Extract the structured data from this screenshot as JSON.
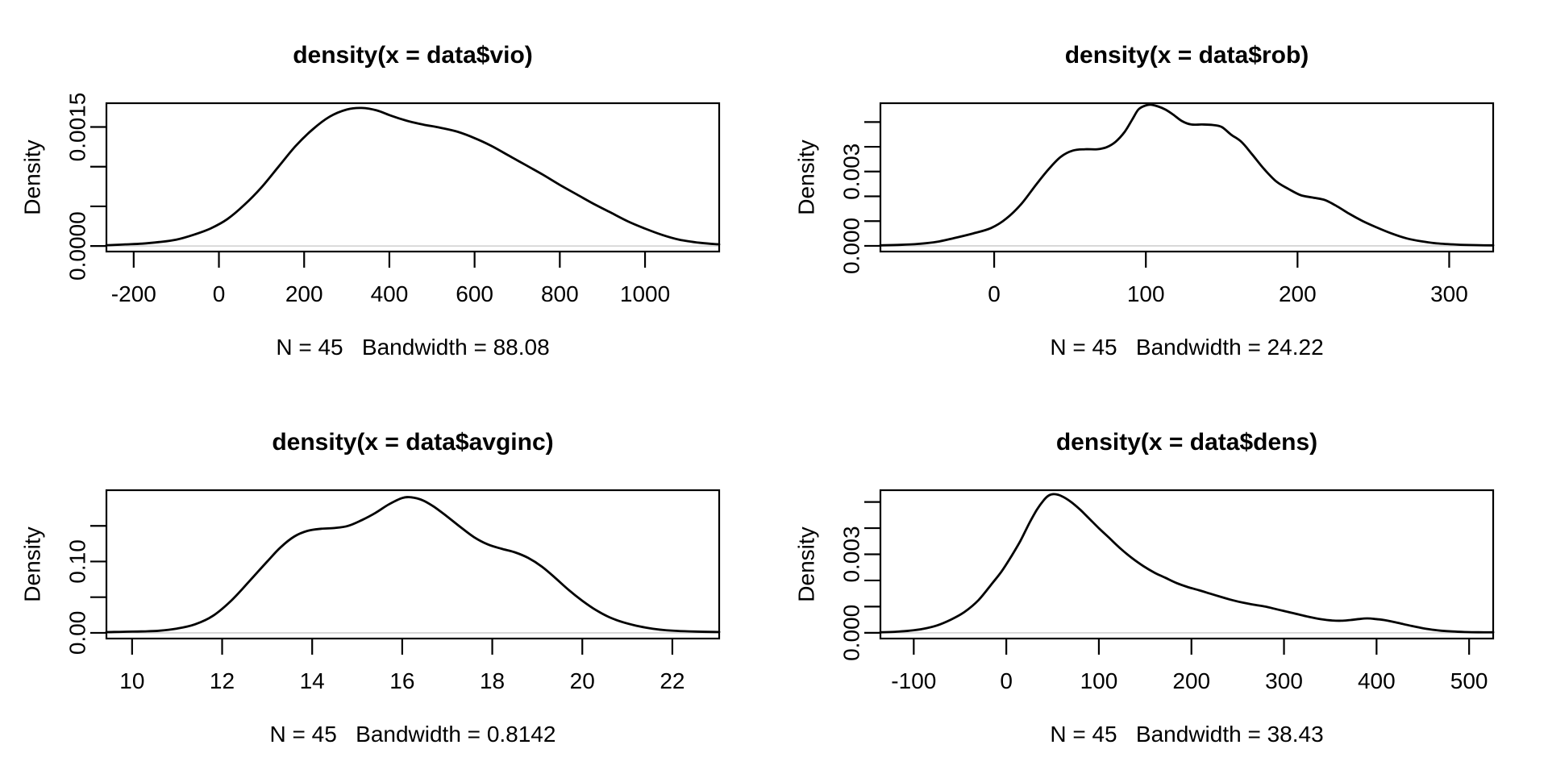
{
  "page": {
    "background": "#ffffff",
    "foreground": "#000000",
    "zero_line_color": "#d6d6d6"
  },
  "chart_data": [
    {
      "type": "line",
      "subtype": "kernel-density",
      "title": "density(x = data$vio)",
      "xlabel": "",
      "ylabel": "Density",
      "caption": "N = 45   Bandwidth = 88.08",
      "n": 45,
      "bandwidth": 88.08,
      "line_color": "#000000",
      "legend": "none",
      "grid": "off",
      "x_axis": {
        "ticks": [
          -200,
          0,
          200,
          400,
          600,
          800,
          1000
        ],
        "labels": [
          "-200",
          "0",
          "200",
          "400",
          "600",
          "800",
          "1000"
        ],
        "range": [
          -264,
          1174
        ]
      },
      "y_axis": {
        "ticks": [
          0,
          0.0005,
          0.001,
          0.0015
        ],
        "labels": [
          "0.0000",
          "",
          "",
          "0.0015"
        ],
        "range": [
          -7e-05,
          0.0018
        ]
      },
      "series": {
        "x": [
          -264,
          -220,
          -180,
          -140,
          -100,
          -60,
          -20,
          20,
          60,
          100,
          140,
          180,
          220,
          260,
          300,
          335,
          370,
          405,
          440,
          480,
          520,
          560,
          600,
          640,
          680,
          720,
          760,
          800,
          840,
          880,
          920,
          960,
          1000,
          1040,
          1080,
          1130,
          1174
        ],
        "y": [
          1e-05,
          2e-05,
          3e-05,
          5e-05,
          8e-05,
          0.00014,
          0.00022,
          0.00034,
          0.00052,
          0.00074,
          0.001,
          0.00126,
          0.00147,
          0.00163,
          0.00172,
          0.00174,
          0.00171,
          0.00164,
          0.00158,
          0.00153,
          0.00149,
          0.00144,
          0.00136,
          0.00126,
          0.00114,
          0.00102,
          0.0009,
          0.00077,
          0.00065,
          0.00053,
          0.00042,
          0.00031,
          0.00022,
          0.00014,
          8e-05,
          4e-05,
          2e-05
        ]
      }
    },
    {
      "type": "line",
      "subtype": "kernel-density",
      "title": "density(x = data$rob)",
      "xlabel": "",
      "ylabel": "Density",
      "caption": "N = 45   Bandwidth = 24.22",
      "n": 45,
      "bandwidth": 24.22,
      "line_color": "#000000",
      "legend": "none",
      "grid": "off",
      "x_axis": {
        "ticks": [
          0,
          100,
          200,
          300
        ],
        "labels": [
          "0",
          "100",
          "200",
          "300"
        ],
        "range": [
          -75,
          329
        ]
      },
      "y_axis": {
        "ticks": [
          0,
          0.001,
          0.002,
          0.003,
          0.004,
          0.005
        ],
        "labels": [
          "0.000",
          "",
          "",
          "0.003",
          "",
          ""
        ],
        "range": [
          -0.00023,
          0.00576
        ]
      },
      "series": {
        "x": [
          -75,
          -62,
          -50,
          -38,
          -26,
          -14,
          -2,
          8,
          18,
          28,
          36,
          44,
          52,
          60,
          68,
          74,
          80,
          86,
          91,
          95,
          99,
          103,
          108,
          113,
          118,
          124,
          130,
          137,
          144,
          150,
          156,
          163,
          170,
          178,
          186,
          194,
          202,
          210,
          218,
          226,
          234,
          243,
          252,
          262,
          272,
          282,
          292,
          305,
          317,
          329
        ],
        "y": [
          2e-05,
          4e-05,
          8e-05,
          0.00016,
          0.00032,
          0.0005,
          0.00072,
          0.0011,
          0.0017,
          0.0025,
          0.0031,
          0.0036,
          0.00385,
          0.0039,
          0.0039,
          0.00398,
          0.0042,
          0.0046,
          0.0051,
          0.0055,
          0.00565,
          0.0057,
          0.00563,
          0.0055,
          0.0053,
          0.00503,
          0.0049,
          0.0049,
          0.00488,
          0.0048,
          0.0045,
          0.0042,
          0.0037,
          0.0031,
          0.0026,
          0.0023,
          0.00205,
          0.00195,
          0.00185,
          0.0016,
          0.0013,
          0.001,
          0.00075,
          0.0005,
          0.0003,
          0.00018,
          0.0001,
          5e-05,
          3e-05,
          2e-05
        ]
      }
    },
    {
      "type": "line",
      "subtype": "kernel-density",
      "title": "density(x = data$avginc)",
      "xlabel": "",
      "ylabel": "Density",
      "caption": "N = 45   Bandwidth = 0.8142",
      "n": 45,
      "bandwidth": 0.8142,
      "line_color": "#000000",
      "legend": "none",
      "grid": "off",
      "x_axis": {
        "ticks": [
          10,
          12,
          14,
          16,
          18,
          20,
          22
        ],
        "labels": [
          "10",
          "12",
          "14",
          "16",
          "18",
          "20",
          "22"
        ],
        "range": [
          9.43,
          23.04
        ]
      },
      "y_axis": {
        "ticks": [
          0,
          0.05,
          0.1,
          0.15
        ],
        "labels": [
          "0.00",
          "",
          "0.10",
          ""
        ],
        "range": [
          -0.008,
          0.2
        ]
      },
      "series": {
        "x": [
          9.43,
          9.8,
          10.2,
          10.6,
          11,
          11.4,
          11.8,
          12.2,
          12.6,
          13,
          13.3,
          13.6,
          13.9,
          14.2,
          14.5,
          14.8,
          15.1,
          15.4,
          15.7,
          16,
          16.2,
          16.45,
          16.7,
          17,
          17.3,
          17.6,
          17.9,
          18.2,
          18.5,
          18.8,
          19.1,
          19.4,
          19.7,
          20,
          20.3,
          20.6,
          20.9,
          21.2,
          21.5,
          21.8,
          22.1,
          22.5,
          23.04
        ],
        "y": [
          0.001,
          0.0015,
          0.002,
          0.003,
          0.006,
          0.012,
          0.024,
          0.045,
          0.072,
          0.1,
          0.12,
          0.135,
          0.143,
          0.146,
          0.147,
          0.15,
          0.158,
          0.168,
          0.18,
          0.189,
          0.19,
          0.186,
          0.177,
          0.163,
          0.148,
          0.134,
          0.124,
          0.118,
          0.113,
          0.105,
          0.093,
          0.077,
          0.06,
          0.045,
          0.032,
          0.022,
          0.015,
          0.01,
          0.0065,
          0.004,
          0.0027,
          0.0018,
          0.0012
        ]
      }
    },
    {
      "type": "line",
      "subtype": "kernel-density",
      "title": "density(x = data$dens)",
      "xlabel": "",
      "ylabel": "Density",
      "caption": "N = 45   Bandwidth = 38.43",
      "n": 45,
      "bandwidth": 38.43,
      "line_color": "#000000",
      "legend": "none",
      "grid": "off",
      "x_axis": {
        "ticks": [
          -100,
          0,
          100,
          200,
          300,
          400,
          500
        ],
        "labels": [
          "-100",
          "0",
          "100",
          "200",
          "300",
          "400",
          "500"
        ],
        "range": [
          -136,
          526
        ]
      },
      "y_axis": {
        "ticks": [
          0,
          0.001,
          0.002,
          0.003,
          0.004,
          0.005
        ],
        "labels": [
          "0.000",
          "",
          "",
          "0.003",
          "",
          ""
        ],
        "range": [
          -0.00022,
          0.00545
        ]
      },
      "series": {
        "x": [
          -136,
          -120,
          -105,
          -90,
          -75,
          -60,
          -45,
          -30,
          -15,
          -5,
          5,
          15,
          25,
          33,
          40,
          46,
          52,
          60,
          70,
          80,
          90,
          100,
          112,
          124,
          136,
          148,
          160,
          172,
          184,
          196,
          208,
          220,
          232,
          244,
          256,
          268,
          280,
          292,
          304,
          316,
          328,
          340,
          352,
          362,
          372,
          382,
          390,
          398,
          408,
          418,
          428,
          438,
          448,
          458,
          470,
          482,
          495,
          510,
          526
        ],
        "y": [
          2e-05,
          4e-05,
          8e-05,
          0.00015,
          0.00028,
          0.0005,
          0.0008,
          0.00125,
          0.0019,
          0.00235,
          0.0029,
          0.0035,
          0.0042,
          0.0047,
          0.00505,
          0.00525,
          0.0053,
          0.00522,
          0.005,
          0.0047,
          0.00435,
          0.004,
          0.0036,
          0.0032,
          0.00285,
          0.00255,
          0.0023,
          0.0021,
          0.0019,
          0.00175,
          0.00163,
          0.0015,
          0.00137,
          0.00125,
          0.00115,
          0.00107,
          0.001,
          0.0009,
          0.0008,
          0.0007,
          0.0006,
          0.00052,
          0.00047,
          0.00046,
          0.00049,
          0.00053,
          0.00055,
          0.00053,
          0.00049,
          0.00042,
          0.00034,
          0.00026,
          0.00019,
          0.00013,
          8e-05,
          5e-05,
          3e-05,
          2e-05,
          2e-05
        ]
      }
    }
  ]
}
